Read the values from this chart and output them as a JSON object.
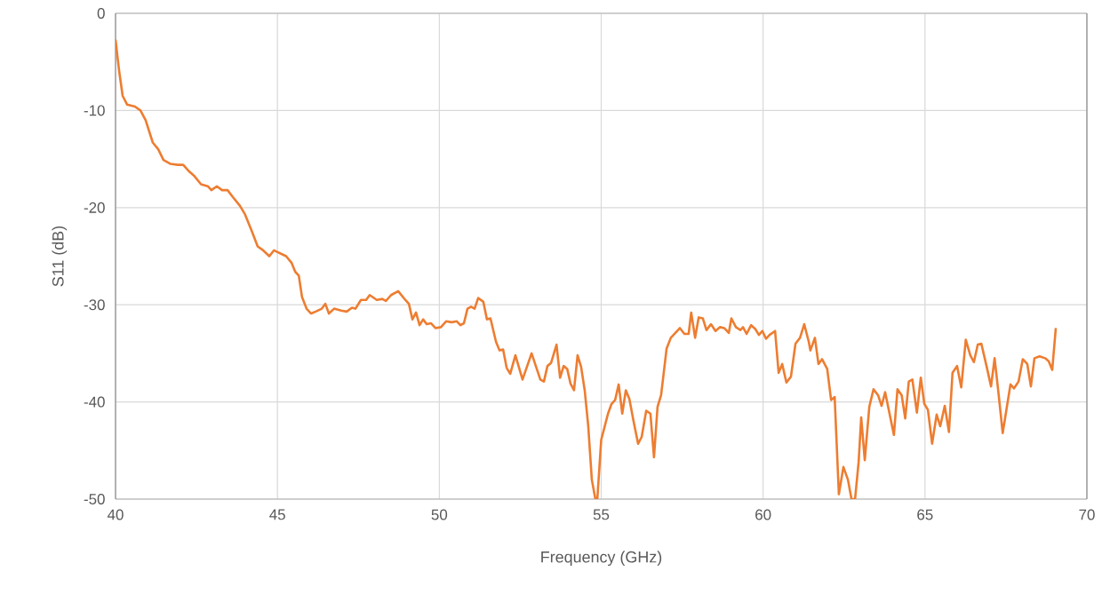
{
  "chart_data": {
    "type": "line",
    "xlabel": "Frequency (GHz)",
    "ylabel": "S11 (dB)",
    "xlim": [
      40,
      70
    ],
    "ylim": [
      -50,
      0
    ],
    "xticks": [
      40,
      45,
      50,
      55,
      60,
      65,
      70
    ],
    "yticks": [
      -50,
      -40,
      -30,
      -20,
      -10,
      0
    ],
    "grid": true,
    "line_style": "solid",
    "marker": "none",
    "series": [
      {
        "color": "#ed7d31",
        "x": [
          40.0,
          40.11,
          40.22,
          40.36,
          40.6,
          40.77,
          40.93,
          41.15,
          41.32,
          41.48,
          41.7,
          41.92,
          42.09,
          42.25,
          42.42,
          42.64,
          42.85,
          42.96,
          43.13,
          43.29,
          43.46,
          43.62,
          43.84,
          44.0,
          44.23,
          44.39,
          44.56,
          44.75,
          44.89,
          45.08,
          45.27,
          45.44,
          45.55,
          45.66,
          45.76,
          45.9,
          46.04,
          46.18,
          46.37,
          46.48,
          46.59,
          46.75,
          46.97,
          47.14,
          47.3,
          47.41,
          47.58,
          47.74,
          47.85,
          48.07,
          48.24,
          48.35,
          48.51,
          48.73,
          48.95,
          49.06,
          49.17,
          49.28,
          49.39,
          49.5,
          49.61,
          49.74,
          49.88,
          50.05,
          50.21,
          50.38,
          50.54,
          50.65,
          50.76,
          50.87,
          50.98,
          51.09,
          51.2,
          51.36,
          51.47,
          51.58,
          51.75,
          51.86,
          51.97,
          52.08,
          52.19,
          52.35,
          52.57,
          52.85,
          53.12,
          53.23,
          53.34,
          53.45,
          53.62,
          53.73,
          53.84,
          53.95,
          54.05,
          54.16,
          54.27,
          54.38,
          54.49,
          54.6,
          54.71,
          54.82,
          54.88,
          55.0,
          55.11,
          55.21,
          55.32,
          55.43,
          55.54,
          55.65,
          55.76,
          55.87,
          56.0,
          56.14,
          56.25,
          56.39,
          56.52,
          56.63,
          56.74,
          56.85,
          57.02,
          57.15,
          57.29,
          57.43,
          57.57,
          57.7,
          57.78,
          57.9,
          58.01,
          58.14,
          58.25,
          58.39,
          58.53,
          58.67,
          58.8,
          58.94,
          59.02,
          59.16,
          59.3,
          59.38,
          59.49,
          59.63,
          59.76,
          59.87,
          59.98,
          60.09,
          60.2,
          60.37,
          60.48,
          60.59,
          60.72,
          60.86,
          61.0,
          61.14,
          61.27,
          61.41,
          61.46,
          61.6,
          61.71,
          61.82,
          61.98,
          62.1,
          62.21,
          62.34,
          62.48,
          62.62,
          62.73,
          62.84,
          62.95,
          63.03,
          63.14,
          63.28,
          63.41,
          63.55,
          63.66,
          63.77,
          64.04,
          64.15,
          64.28,
          64.39,
          64.5,
          64.61,
          64.75,
          64.87,
          64.98,
          65.09,
          65.22,
          65.36,
          65.47,
          65.61,
          65.74,
          65.85,
          65.99,
          66.12,
          66.26,
          66.4,
          66.51,
          66.63,
          66.74,
          66.9,
          67.04,
          67.15,
          67.26,
          67.4,
          67.51,
          67.64,
          67.75,
          67.89,
          68.02,
          68.16,
          68.27,
          68.38,
          68.54,
          68.71,
          68.82,
          68.93,
          69.04
        ],
        "values": [
          -2.7,
          -5.9,
          -8.5,
          -9.4,
          -9.6,
          -10.0,
          -11.0,
          -13.3,
          -14.0,
          -15.1,
          -15.5,
          -15.6,
          -15.6,
          -16.2,
          -16.7,
          -17.6,
          -17.8,
          -18.2,
          -17.8,
          -18.2,
          -18.2,
          -18.9,
          -19.8,
          -20.7,
          -22.6,
          -24.0,
          -24.4,
          -25.0,
          -24.4,
          -24.7,
          -25.0,
          -25.7,
          -26.6,
          -27.0,
          -29.2,
          -30.4,
          -30.9,
          -30.7,
          -30.4,
          -29.9,
          -30.9,
          -30.4,
          -30.6,
          -30.7,
          -30.3,
          -30.4,
          -29.5,
          -29.5,
          -29.0,
          -29.5,
          -29.4,
          -29.6,
          -29.0,
          -28.6,
          -29.5,
          -29.9,
          -31.5,
          -30.8,
          -32.1,
          -31.5,
          -32.0,
          -31.9,
          -32.4,
          -32.3,
          -31.7,
          -31.8,
          -31.7,
          -32.1,
          -31.9,
          -30.4,
          -30.2,
          -30.4,
          -29.3,
          -29.7,
          -31.5,
          -31.4,
          -33.8,
          -34.7,
          -34.6,
          -36.5,
          -37.1,
          -35.2,
          -37.7,
          -35.0,
          -37.7,
          -37.9,
          -36.3,
          -36.0,
          -34.1,
          -37.5,
          -36.3,
          -36.6,
          -38.1,
          -38.8,
          -35.2,
          -36.4,
          -38.8,
          -42.5,
          -48.0,
          -50,
          -50,
          -43.9,
          -42.5,
          -41.2,
          -40.2,
          -39.8,
          -38.2,
          -41.2,
          -38.8,
          -39.7,
          -42.0,
          -44.3,
          -43.6,
          -40.9,
          -41.2,
          -45.7,
          -40.5,
          -39.3,
          -34.5,
          -33.4,
          -32.9,
          -32.4,
          -33.0,
          -33.0,
          -30.8,
          -33.4,
          -31.3,
          -31.4,
          -32.6,
          -32.0,
          -32.7,
          -32.3,
          -32.4,
          -32.9,
          -31.4,
          -32.3,
          -32.6,
          -32.3,
          -33.0,
          -32.1,
          -32.5,
          -33.1,
          -32.7,
          -33.5,
          -33.1,
          -32.7,
          -37.0,
          -36.1,
          -38.0,
          -37.4,
          -34.0,
          -33.4,
          -32.0,
          -33.8,
          -34.7,
          -33.4,
          -36.1,
          -35.6,
          -36.6,
          -39.8,
          -39.5,
          -49.5,
          -46.7,
          -48.0,
          -50,
          -50,
          -46.2,
          -41.6,
          -46.0,
          -40.5,
          -38.7,
          -39.3,
          -40.4,
          -39.0,
          -43.4,
          -38.7,
          -39.3,
          -41.7,
          -37.9,
          -37.7,
          -41.1,
          -37.5,
          -40.2,
          -40.8,
          -44.3,
          -41.3,
          -42.5,
          -40.4,
          -43.1,
          -37.0,
          -36.3,
          -38.5,
          -33.6,
          -35.2,
          -35.9,
          -34.1,
          -34.0,
          -36.3,
          -38.4,
          -35.5,
          -38.8,
          -43.2,
          -40.9,
          -38.2,
          -38.6,
          -37.9,
          -35.6,
          -36.1,
          -38.4,
          -35.5,
          -35.3,
          -35.5,
          -35.8,
          -36.7,
          -32.4
        ]
      }
    ]
  }
}
